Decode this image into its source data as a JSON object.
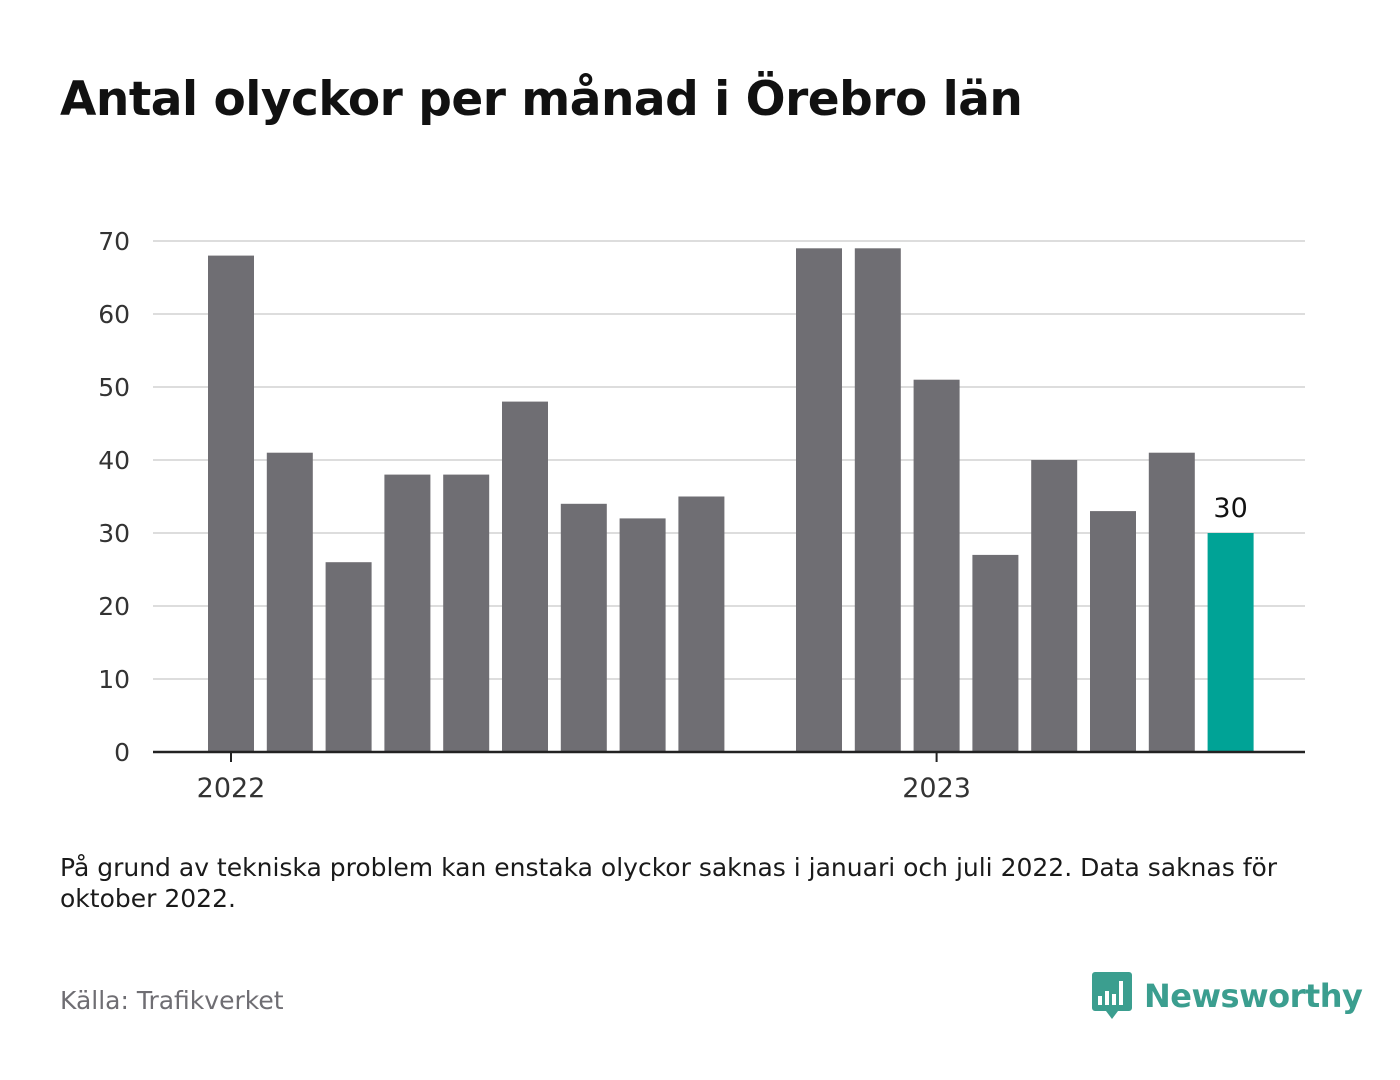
{
  "title": "Antal olyckor per månad i Örebro län",
  "note": "På grund av tekniska problem kan enstaka olyckor saknas i januari och juli 2022. Data saknas för oktober 2022.",
  "source": "Källa: Trafikverket",
  "brand": {
    "name": "Newsworthy",
    "icon": "bar-chart-speech-bubble-icon",
    "color": "#3b9e8f"
  },
  "chart_data": {
    "type": "bar",
    "title": "Antal olyckor per månad i Örebro län",
    "xlabel": "",
    "ylabel": "",
    "ylim": [
      0,
      70
    ],
    "yticks": [
      0,
      10,
      20,
      30,
      40,
      50,
      60,
      70
    ],
    "grid": true,
    "x_tick_labels": [
      "2022",
      "2023"
    ],
    "categories": [
      "2022-01",
      "2022-02",
      "2022-03",
      "2022-04",
      "2022-05",
      "2022-06",
      "2022-07",
      "2022-08",
      "2022-09",
      "2022-10",
      "2022-11",
      "2022-12",
      "2023-01",
      "2023-02",
      "2023-03",
      "2023-04",
      "2023-05",
      "2023-06"
    ],
    "values": [
      68,
      41,
      26,
      38,
      38,
      48,
      34,
      32,
      35,
      null,
      69,
      69,
      51,
      27,
      40,
      33,
      41,
      30
    ],
    "highlight": {
      "category": "2023-06",
      "label": "30"
    },
    "colors": {
      "bar": "#6f6e73",
      "highlight": "#00a396",
      "grid": "#dddddd",
      "axis": "#222222"
    }
  }
}
